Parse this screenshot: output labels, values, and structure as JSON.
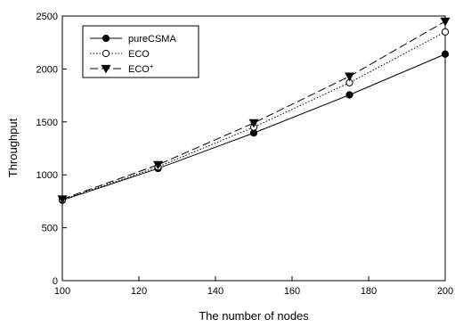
{
  "chart_data": {
    "type": "line",
    "xlabel": "The number of nodes",
    "ylabel": "Throughput",
    "xlim": [
      100,
      200
    ],
    "ylim": [
      0,
      2500
    ],
    "xticks": [
      "100",
      "120",
      "140",
      "160",
      "180",
      "200"
    ],
    "yticks": [
      "0",
      "500",
      "1000",
      "1500",
      "2000",
      "2500"
    ],
    "grid": false,
    "legend_position": "top-left",
    "x": [
      100,
      125,
      150,
      175,
      200
    ],
    "series": [
      {
        "name": "pureCSMA",
        "base": "ECO",
        "sup": "",
        "marker": "filled-circle",
        "dash": "solid",
        "values": [
          760,
          1060,
          1395,
          1755,
          2140
        ]
      },
      {
        "name": "ECO",
        "base": "ECO",
        "sup": "",
        "marker": "open-circle",
        "dash": "dotted",
        "values": [
          765,
          1075,
          1450,
          1870,
          2350
        ]
      },
      {
        "name": "ECO+",
        "base": "ECO",
        "sup": "+",
        "marker": "filled-triangle-down",
        "dash": "dashed",
        "values": [
          770,
          1095,
          1490,
          1930,
          2450
        ]
      }
    ]
  }
}
